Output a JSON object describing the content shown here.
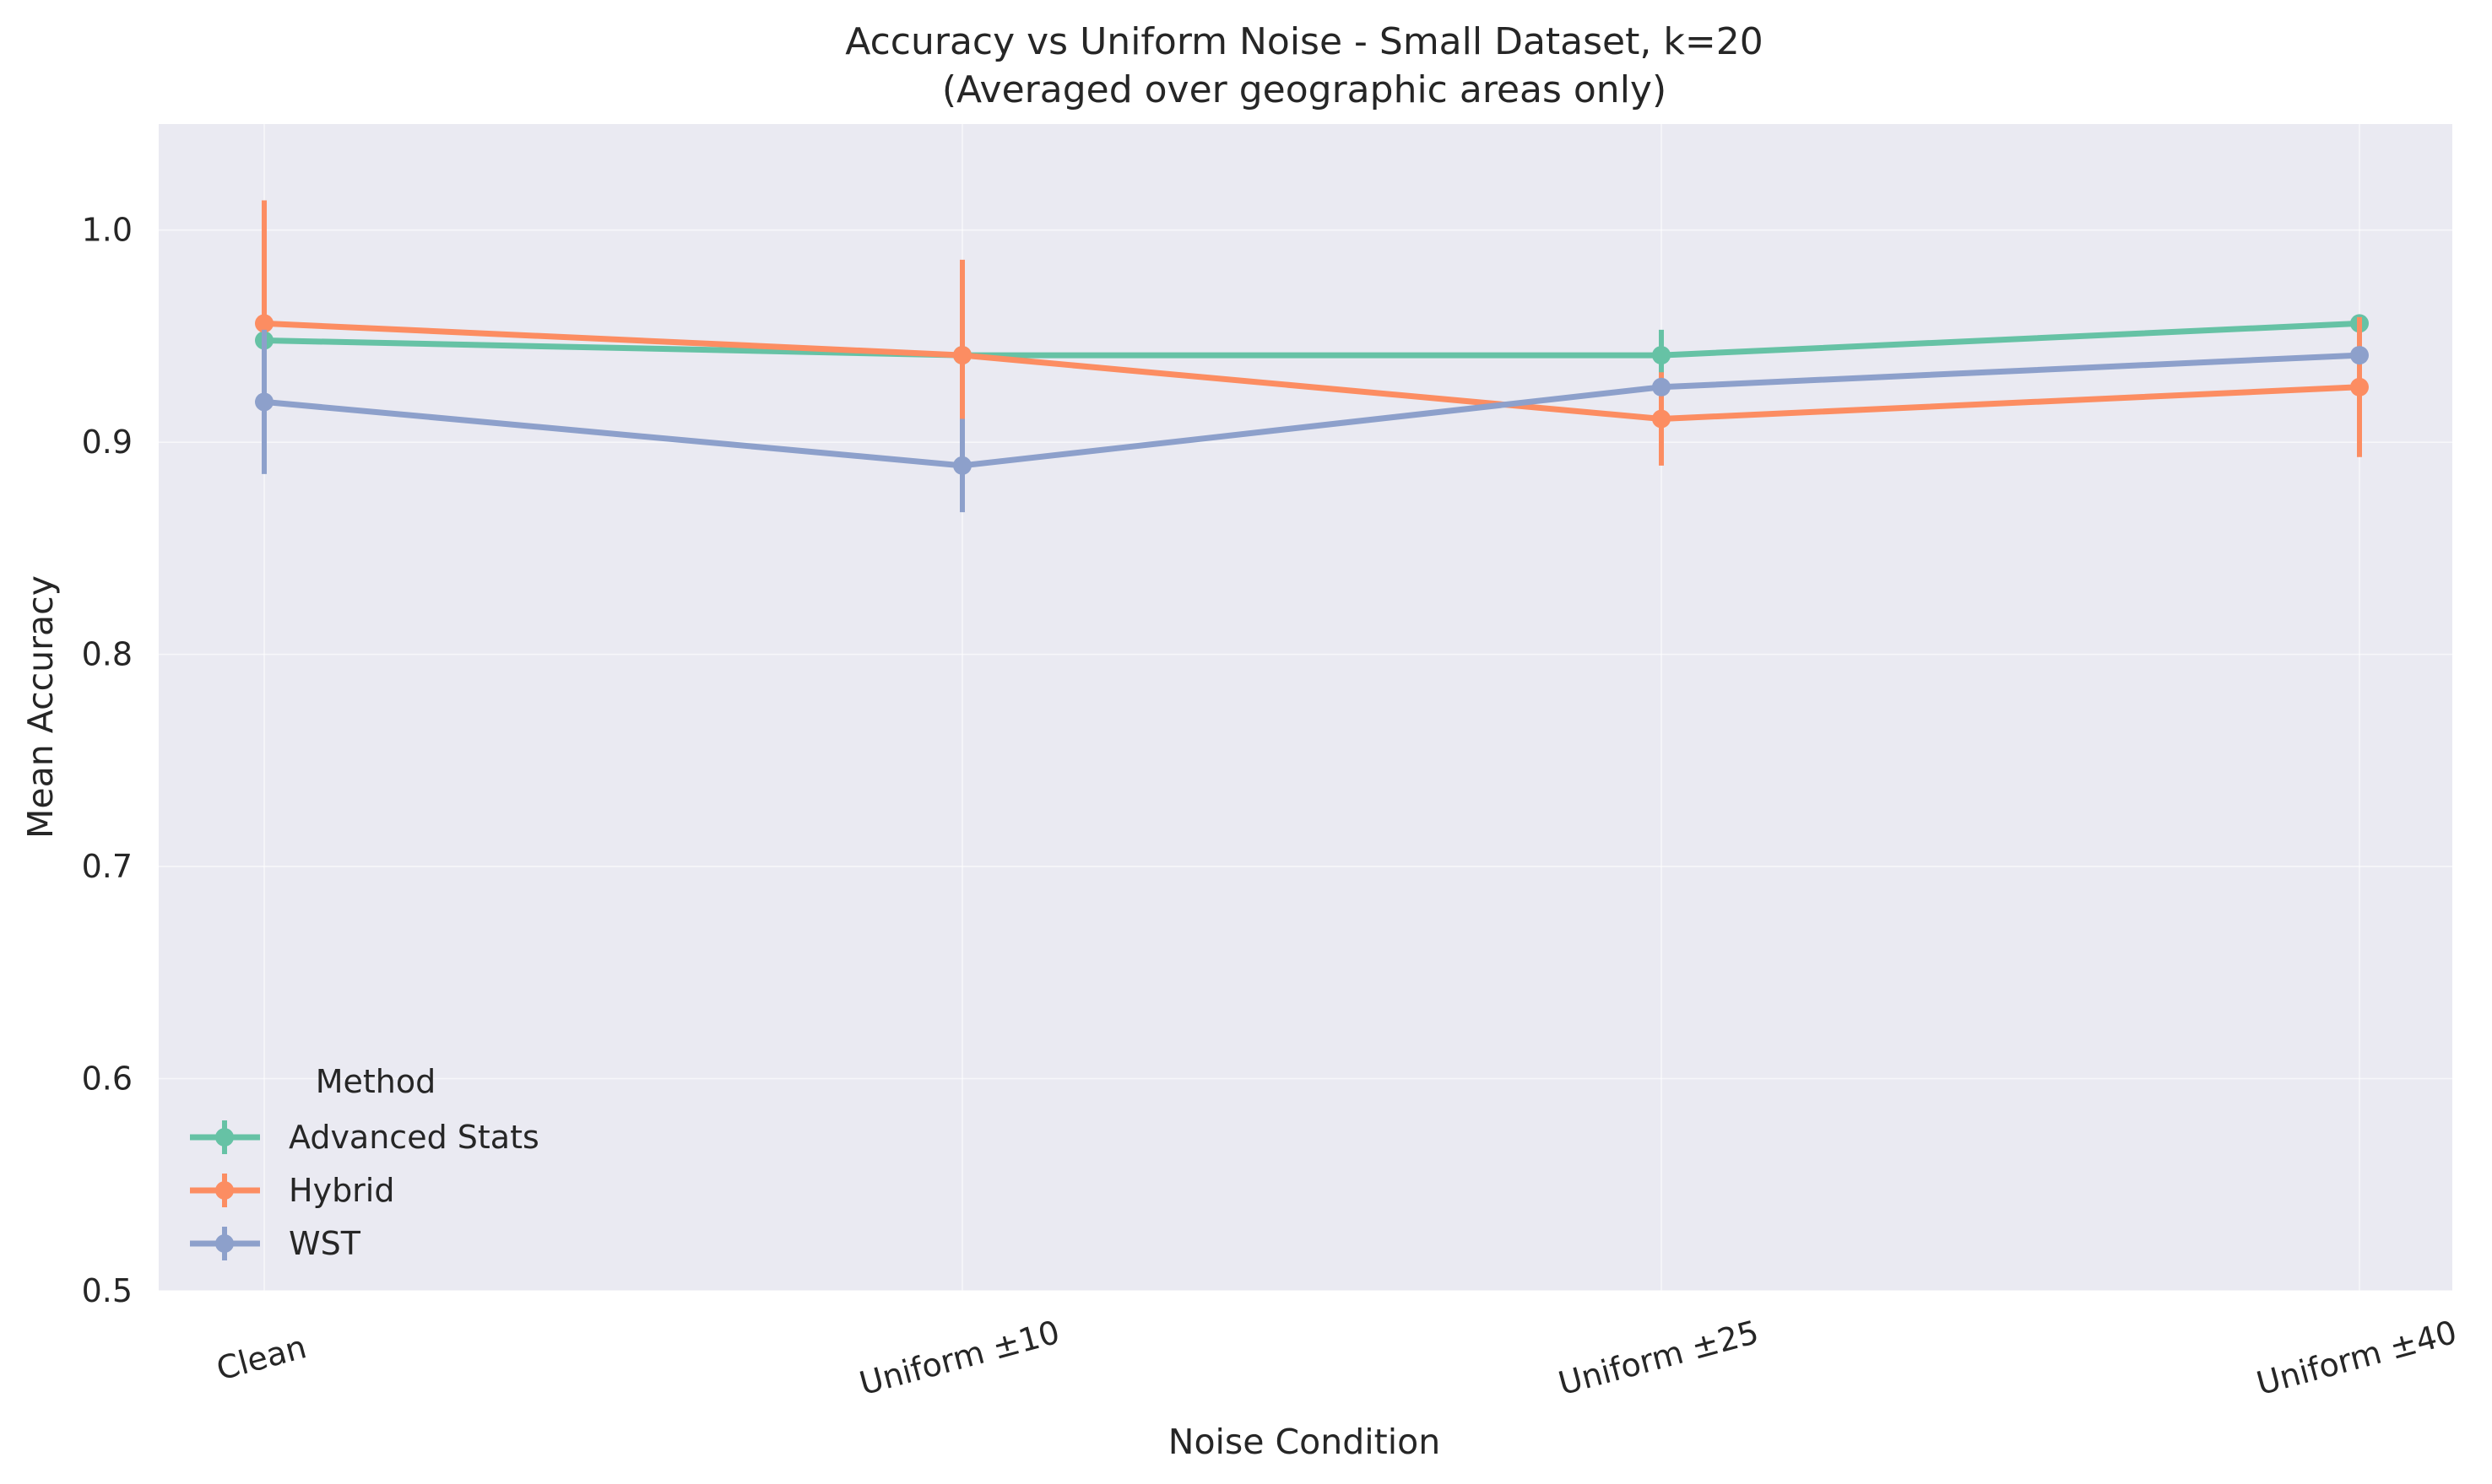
{
  "chart_data": {
    "type": "line",
    "title": "Accuracy vs Uniform Noise - Small Dataset, k=20",
    "subtitle": "(Averaged over geographic areas only)",
    "xlabel": "Noise Condition",
    "ylabel": "Mean Accuracy",
    "categories": [
      "Clean",
      "Uniform ±10",
      "Uniform ±25",
      "Uniform ±40"
    ],
    "ylim": [
      0.5,
      1.05
    ],
    "yticks": [
      "0.5",
      "0.6",
      "0.7",
      "0.8",
      "0.9",
      "1.0"
    ],
    "grid": true,
    "legend": {
      "title": "Method",
      "position": "lower-left"
    },
    "series": [
      {
        "name": "Advanced Stats",
        "color": "#66c2a5",
        "values": [
          0.948,
          0.941,
          0.941,
          0.956
        ],
        "errors": [
          0.0,
          0.0,
          0.012,
          0.0
        ]
      },
      {
        "name": "Hybrid",
        "color": "#fc8d62",
        "values": [
          0.956,
          0.941,
          0.911,
          0.926
        ],
        "errors": [
          0.058,
          0.045,
          0.022,
          0.033
        ]
      },
      {
        "name": "WST",
        "color": "#8da0cb",
        "values": [
          0.919,
          0.889,
          0.926,
          0.941
        ],
        "errors": [
          0.034,
          0.022,
          0.0,
          0.0
        ]
      }
    ]
  }
}
